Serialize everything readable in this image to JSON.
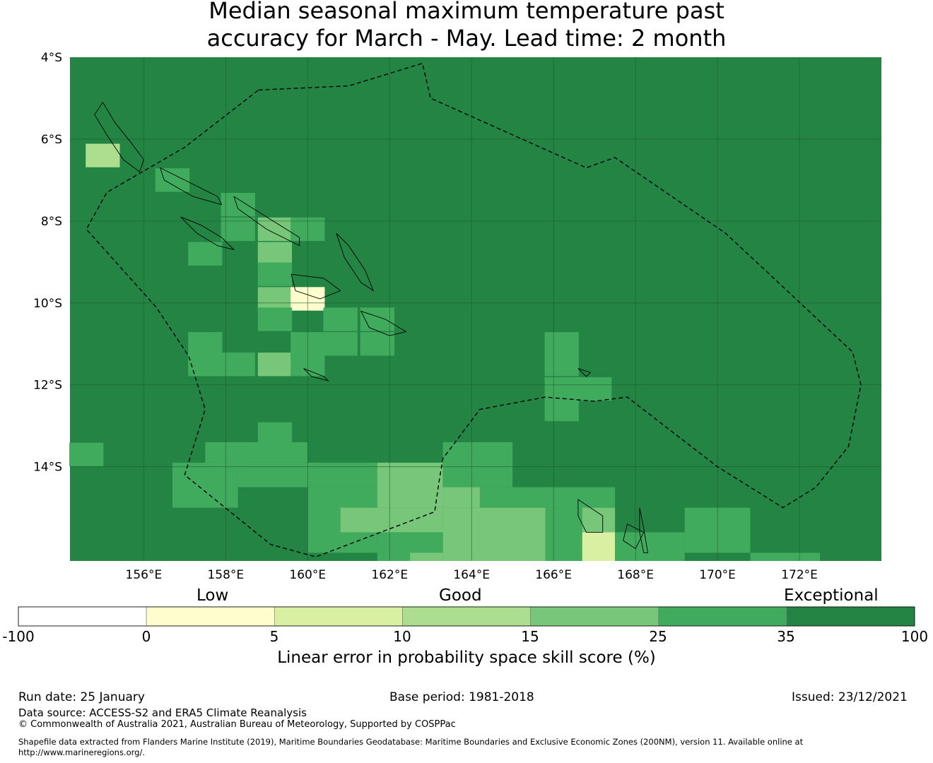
{
  "title_line1": "Median seasonal maximum temperature past",
  "title_line2": "accuracy for March - May. Lead time: 2 month",
  "map": {
    "lon_ticks": [
      "156°E",
      "158°E",
      "160°E",
      "162°E",
      "164°E",
      "166°E",
      "168°E",
      "170°E",
      "172°E"
    ],
    "lat_ticks": [
      "4°S",
      "6°S",
      "8°S",
      "10°S",
      "12°S",
      "14°S"
    ],
    "extent": {
      "lon_min": 154.2,
      "lon_max": 174.0,
      "lat_min": -16.3,
      "lat_max": -4.0
    },
    "grid_resolution_deg": 0.833,
    "background_class": 6,
    "cells": [
      {
        "lon": 155.0,
        "lat": -6.4,
        "class": 3
      },
      {
        "lon": 156.7,
        "lat": -7.0,
        "class": 5
      },
      {
        "lon": 158.3,
        "lat": -7.6,
        "class": 5
      },
      {
        "lon": 158.3,
        "lat": -8.2,
        "class": 5
      },
      {
        "lon": 157.5,
        "lat": -8.8,
        "class": 5
      },
      {
        "lon": 159.2,
        "lat": -8.2,
        "class": 4
      },
      {
        "lon": 159.2,
        "lat": -8.8,
        "class": 4
      },
      {
        "lon": 160.0,
        "lat": -8.2,
        "class": 5
      },
      {
        "lon": 159.2,
        "lat": -9.3,
        "class": 5
      },
      {
        "lon": 159.2,
        "lat": -9.9,
        "class": 4
      },
      {
        "lon": 160.0,
        "lat": -9.9,
        "class": 1
      },
      {
        "lon": 159.2,
        "lat": -10.4,
        "class": 5
      },
      {
        "lon": 160.8,
        "lat": -10.4,
        "class": 5
      },
      {
        "lon": 161.7,
        "lat": -10.4,
        "class": 5
      },
      {
        "lon": 157.5,
        "lat": -11.0,
        "class": 5
      },
      {
        "lon": 157.5,
        "lat": -11.5,
        "class": 5
      },
      {
        "lon": 158.3,
        "lat": -11.5,
        "class": 5
      },
      {
        "lon": 159.2,
        "lat": -11.5,
        "class": 4
      },
      {
        "lon": 160.0,
        "lat": -11.0,
        "class": 5
      },
      {
        "lon": 160.8,
        "lat": -11.0,
        "class": 5
      },
      {
        "lon": 161.7,
        "lat": -11.0,
        "class": 5
      },
      {
        "lon": 160.0,
        "lat": -11.5,
        "class": 5
      },
      {
        "lon": 166.2,
        "lat": -11.0,
        "class": 5
      },
      {
        "lon": 166.2,
        "lat": -11.5,
        "class": 5
      },
      {
        "lon": 166.2,
        "lat": -12.1,
        "class": 5
      },
      {
        "lon": 167.0,
        "lat": -12.1,
        "class": 5
      },
      {
        "lon": 166.2,
        "lat": -12.6,
        "class": 5
      },
      {
        "lon": 154.6,
        "lat": -13.7,
        "class": 5
      },
      {
        "lon": 159.2,
        "lat": -13.2,
        "class": 5
      }
    ],
    "regions": [
      {
        "lon_min": 157.5,
        "lon_max": 160.0,
        "lat_min": -13.9,
        "lat_max": -13.4,
        "class": 5
      },
      {
        "lon_min": 156.7,
        "lon_max": 158.3,
        "lat_min": -15.0,
        "lat_max": -13.9,
        "class": 5
      },
      {
        "lon_min": 158.3,
        "lon_max": 161.7,
        "lat_min": -14.5,
        "lat_max": -13.9,
        "class": 5
      },
      {
        "lon_min": 160.0,
        "lon_max": 161.7,
        "lat_min": -16.1,
        "lat_max": -14.5,
        "class": 5
      },
      {
        "lon_min": 161.7,
        "lon_max": 163.3,
        "lat_min": -15.0,
        "lat_max": -13.9,
        "class": 4
      },
      {
        "lon_min": 161.7,
        "lon_max": 163.3,
        "lat_min": -15.6,
        "lat_max": -15.0,
        "class": 4
      },
      {
        "lon_min": 160.8,
        "lon_max": 161.7,
        "lat_min": -15.6,
        "lat_max": -15.0,
        "class": 4
      },
      {
        "lon_min": 163.3,
        "lon_max": 165.0,
        "lat_min": -14.5,
        "lat_max": -13.4,
        "class": 5
      },
      {
        "lon_min": 163.3,
        "lon_max": 165.8,
        "lat_min": -15.0,
        "lat_max": -14.5,
        "class": 5
      },
      {
        "lon_min": 163.3,
        "lon_max": 164.2,
        "lat_min": -15.0,
        "lat_max": -14.5,
        "class": 4
      },
      {
        "lon_min": 163.3,
        "lon_max": 165.8,
        "lat_min": -16.3,
        "lat_max": -15.0,
        "class": 4
      },
      {
        "lon_min": 165.8,
        "lon_max": 167.5,
        "lat_min": -15.0,
        "lat_max": -14.5,
        "class": 5
      },
      {
        "lon_min": 165.8,
        "lon_max": 166.7,
        "lat_min": -16.3,
        "lat_max": -15.0,
        "class": 5
      },
      {
        "lon_min": 166.7,
        "lon_max": 167.5,
        "lat_min": -15.6,
        "lat_max": -15.0,
        "class": 4
      },
      {
        "lon_min": 166.7,
        "lon_max": 167.5,
        "lat_min": -16.3,
        "lat_max": -15.6,
        "class": 2
      },
      {
        "lon_min": 161.7,
        "lon_max": 163.3,
        "lat_min": -16.3,
        "lat_max": -15.6,
        "class": 5
      },
      {
        "lon_min": 162.5,
        "lon_max": 163.3,
        "lat_min": -16.3,
        "lat_max": -16.1,
        "class": 4
      },
      {
        "lon_min": 167.5,
        "lon_max": 169.2,
        "lat_min": -16.3,
        "lat_max": -15.6,
        "class": 5
      },
      {
        "lon_min": 169.2,
        "lon_max": 170.8,
        "lat_min": -16.1,
        "lat_max": -15.0,
        "class": 5
      },
      {
        "lon_min": 170.8,
        "lon_max": 172.5,
        "lat_min": -16.3,
        "lat_max": -16.1,
        "class": 5
      }
    ],
    "boundary_polyline": [
      [
        158.8,
        -4.8
      ],
      [
        161.0,
        -4.7
      ],
      [
        162.8,
        -4.15
      ],
      [
        163.0,
        -5.0
      ],
      [
        166.8,
        -6.7
      ],
      [
        167.5,
        -6.45
      ],
      [
        170.2,
        -8.3
      ],
      [
        173.3,
        -11.2
      ],
      [
        173.5,
        -12.0
      ],
      [
        173.2,
        -13.5
      ],
      [
        172.4,
        -14.5
      ],
      [
        171.6,
        -15.0
      ],
      [
        170.0,
        -14.0
      ],
      [
        167.8,
        -12.3
      ],
      [
        167.0,
        -12.4
      ],
      [
        165.8,
        -12.3
      ],
      [
        164.2,
        -12.6
      ],
      [
        163.3,
        -13.8
      ],
      [
        163.2,
        -14.4
      ],
      [
        163.1,
        -15.1
      ],
      [
        160.2,
        -16.2
      ],
      [
        159.1,
        -15.9
      ],
      [
        157.0,
        -14.2
      ],
      [
        157.5,
        -12.6
      ],
      [
        157.1,
        -11.3
      ],
      [
        156.3,
        -10.1
      ],
      [
        154.6,
        -8.2
      ],
      [
        155.1,
        -7.3
      ],
      [
        157.0,
        -6.2
      ],
      [
        158.8,
        -4.8
      ]
    ]
  },
  "colorbar": {
    "words": [
      "Low",
      "Good",
      "Exceptional"
    ],
    "ticks": [
      "-100",
      "0",
      "5",
      "10",
      "15",
      "25",
      "35",
      "100"
    ],
    "colors": [
      "#ffffff",
      "#fffdcd",
      "#d9f0a3",
      "#addd8e",
      "#78c679",
      "#41ab5d",
      "#238443"
    ],
    "label": "Linear error in probability space skill score (%)"
  },
  "footer": {
    "run_date": "Run date: 25 January",
    "base_period": "Base period: 1981-2018",
    "issued": "Issued: 23/12/2021",
    "data_source": "Data source: ACCESS-S2 and ERA5 Climate Reanalysis",
    "copyright": "© Commonwealth of Australia 2021, Australian Bureau of Meteorology, Supported by COSPPac",
    "shapefile_line1": "Shapefile data extracted from Flanders Marine Institute (2019), Maritime Boundaries Geodatabase: Maritime Boundaries and Exclusive Economic Zones (200NM), version 11. Available online at",
    "shapefile_line2": "http://www.marineregions.org/."
  }
}
